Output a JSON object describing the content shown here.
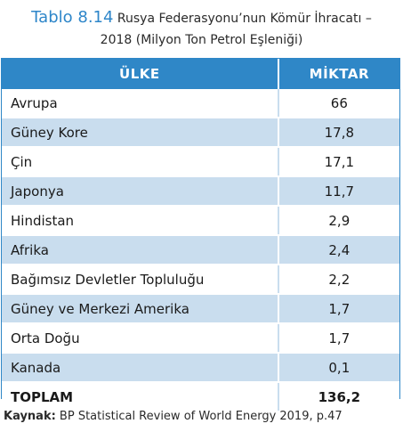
{
  "caption": {
    "table_no": "Tablo 8.14",
    "title_line1": "Rusya Federasyonu’nun Kömür İhracatı –",
    "title_line2": "2018 (Milyon Ton Petrol Eşleniği)"
  },
  "table": {
    "headers": [
      "ÜLKE",
      "MİKTAR"
    ],
    "rows": [
      {
        "name": "Avrupa",
        "value": "66"
      },
      {
        "name": "Güney Kore",
        "value": "17,8"
      },
      {
        "name": "Çin",
        "value": "17,1"
      },
      {
        "name": "Japonya",
        "value": "11,7"
      },
      {
        "name": "Hindistan",
        "value": "2,9"
      },
      {
        "name": "Afrika",
        "value": "2,4"
      },
      {
        "name": "Bağımsız Devletler Topluluğu",
        "value": "2,2"
      },
      {
        "name": "Güney ve Merkezi Amerika",
        "value": "1,7"
      },
      {
        "name": "Orta Doğu",
        "value": "1,7"
      },
      {
        "name": "Kanada",
        "value": "0,1"
      }
    ],
    "total": {
      "name": "TOPLAM",
      "value": "136,2"
    }
  },
  "source": {
    "label": "Kaynak:",
    "text": " BP Statistical Review of World Energy 2019, p.47"
  },
  "colors": {
    "accent": "#2f87c7",
    "stripe": "#c9ddee",
    "table_no": "#2e86c9"
  }
}
